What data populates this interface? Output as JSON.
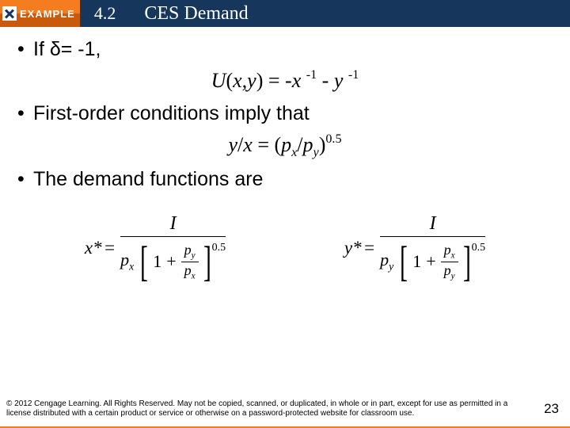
{
  "header": {
    "example_label": "EXAMPLE",
    "chapter_no": "4.2",
    "title": "CES Demand",
    "bg_color": "#16365c",
    "badge_gradient_top": "#f57c1f",
    "badge_gradient_bottom": "#c95a0b"
  },
  "bullets": {
    "b1": "If δ= -1,",
    "b2": "First-order conditions imply that",
    "b3": "The demand functions are"
  },
  "eq1": {
    "U": "U",
    "open": "(",
    "x": "x",
    "comma": ",",
    "y": "y",
    "close_eq": ") = -",
    "x2": "x",
    "exp1_pre": " ",
    "exp1": "-1",
    "minus": " - ",
    "y2": "y",
    "exp2_pre": " ",
    "exp2": "-1"
  },
  "eq2": {
    "lhs_y": "y",
    "slash": "/",
    "lhs_x": "x",
    "eq": " = (",
    "p1": "p",
    "sub_x": "x",
    "slash2": "/",
    "p2": "p",
    "sub_y": "y",
    "close": ")",
    "exp": "0.5"
  },
  "demand": {
    "x": {
      "var": "x",
      "star": "*",
      "eq": "=",
      "numer": "I",
      "den_p": "p",
      "den_psub": "x",
      "one": "1",
      "plus": "+",
      "frac_num_p": "p",
      "frac_num_sub": "y",
      "frac_den_p": "p",
      "frac_den_sub": "x",
      "outer_exp": "0.5"
    },
    "y": {
      "var": "y",
      "star": "*",
      "eq": "=",
      "numer": "I",
      "den_p": "p",
      "den_psub": "y",
      "one": "1",
      "plus": "+",
      "frac_num_p": "p",
      "frac_num_sub": "x",
      "frac_den_p": "p",
      "frac_den_sub": "y",
      "outer_exp": "0.5"
    }
  },
  "footer": {
    "text": "© 2012 Cengage Learning. All Rights Reserved. May not be copied, scanned, or duplicated, in whole or in part, except for use as permitted in a license distributed with a certain product or service or otherwise on a password-protected website for classroom use."
  },
  "page_number": "23",
  "accent_color": "#f57c1f"
}
